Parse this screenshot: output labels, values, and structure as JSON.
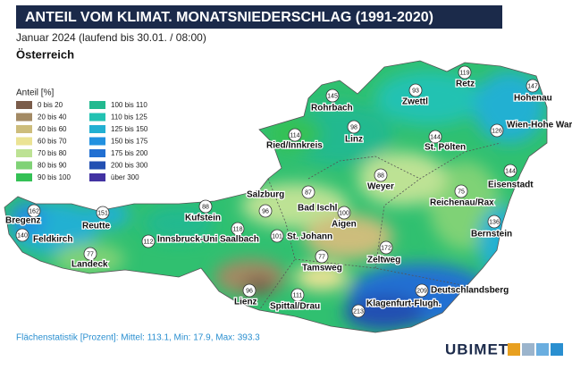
{
  "header": {
    "title": "ANTEIL VOM KLIMAT. MONATSNIEDERSCHLAG (1991-2020)",
    "subtitle": "Januar 2024 (laufend bis 30.01. / 08:00)",
    "region": "Österreich"
  },
  "legend": {
    "title": "Anteil [%]",
    "items": [
      {
        "label": "0 bis 20",
        "color": "#7a5c4a"
      },
      {
        "label": "20 bis 40",
        "color": "#a38a64"
      },
      {
        "label": "40 bis 60",
        "color": "#cdbd7c"
      },
      {
        "label": "60 bis 70",
        "color": "#ebe394"
      },
      {
        "label": "70 bis 80",
        "color": "#bde294"
      },
      {
        "label": "80 bis 90",
        "color": "#7fd276"
      },
      {
        "label": "90 bis 100",
        "color": "#34c155"
      },
      {
        "label": "100 bis 110",
        "color": "#22b98f"
      },
      {
        "label": "110 bis 125",
        "color": "#22c2b2"
      },
      {
        "label": "125 bis 150",
        "color": "#22b0d2"
      },
      {
        "label": "150 bis 175",
        "color": "#2291e0"
      },
      {
        "label": "175 bis 200",
        "color": "#2270d2"
      },
      {
        "label": "200 bis 300",
        "color": "#2350b2"
      },
      {
        "label": "über 300",
        "color": "#4232a2"
      }
    ]
  },
  "stations": [
    {
      "name": "Bregenz",
      "value": 162
    },
    {
      "name": "Feldkirch",
      "value": 140
    },
    {
      "name": "Reutte",
      "value": 151
    },
    {
      "name": "Landeck",
      "value": 77
    },
    {
      "name": "Innsbruck-Uni",
      "value": 112
    },
    {
      "name": "Kufstein",
      "value": 88
    },
    {
      "name": "Saalbach",
      "value": 118
    },
    {
      "name": "Salzburg",
      "value": 96
    },
    {
      "name": "Bad Ischl",
      "value": 87
    },
    {
      "name": "St. Johann",
      "value": 101
    },
    {
      "name": "Aigen",
      "value": 100
    },
    {
      "name": "Tamsweg",
      "value": 77
    },
    {
      "name": "Lienz",
      "value": 96
    },
    {
      "name": "Spittal/Drau",
      "value": 111
    },
    {
      "name": "Klagenfurt-Flugh.",
      "value": 213
    },
    {
      "name": "Zeltweg",
      "value": 172
    },
    {
      "name": "Deutschlandsberg",
      "value": 209
    },
    {
      "name": "Bernstein",
      "value": 136
    },
    {
      "name": "Reichenau/Rax",
      "value": 75
    },
    {
      "name": "Eisenstadt",
      "value": 144
    },
    {
      "name": "Weyer",
      "value": 88
    },
    {
      "name": "Linz",
      "value": 98
    },
    {
      "name": "Rohrbach",
      "value": 145
    },
    {
      "name": "Ried/Innkreis",
      "value": 114
    },
    {
      "name": "Zwettl",
      "value": 93
    },
    {
      "name": "Retz",
      "value": 119
    },
    {
      "name": "Hohenau",
      "value": 147
    },
    {
      "name": "Wien-Hohe Warte",
      "value": 126
    },
    {
      "name": "St. Pölten",
      "value": 144
    }
  ],
  "footer": {
    "statistics": "Flächenstatistik [Prozent]: Mittel: 113.1, Min: 17.9, Max: 393.3",
    "brand": "UBIMET"
  }
}
